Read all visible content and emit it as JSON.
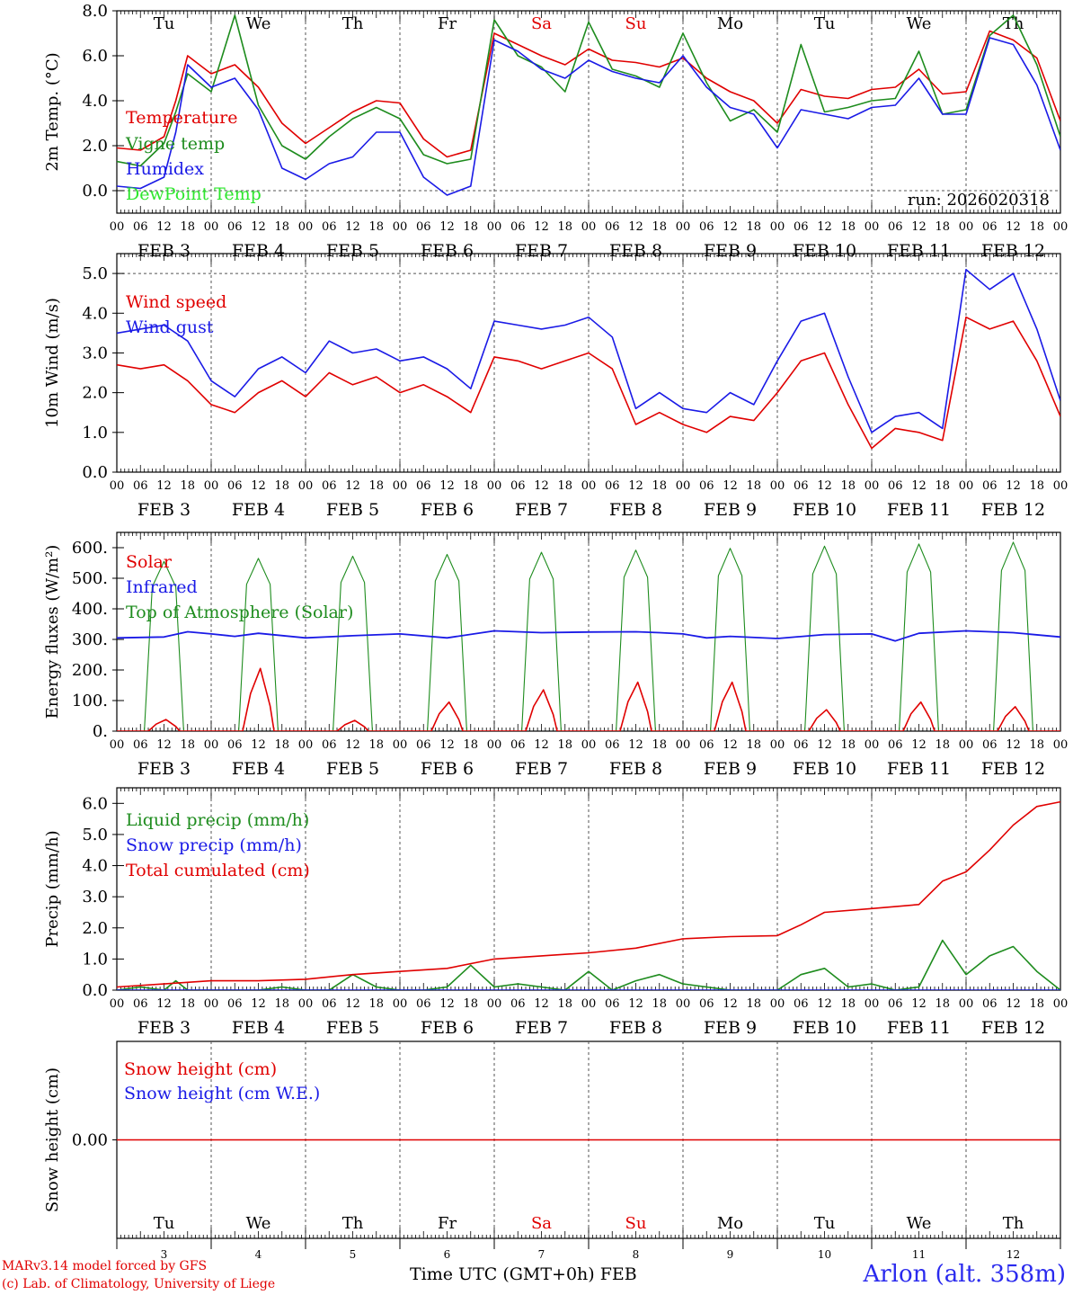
{
  "colors": {
    "red": "#e00000",
    "green": "#1e8c1e",
    "blue": "#1a1ae6",
    "lightgreen": "#2ee62e",
    "axis": "#000000",
    "grid": "#555555"
  },
  "day_names": [
    "Tu",
    "We",
    "Th",
    "Fr",
    "Sa",
    "Su",
    "Mo",
    "Tu",
    "We",
    "Th"
  ],
  "weekend_flags": [
    false,
    false,
    false,
    false,
    true,
    true,
    false,
    false,
    false,
    false
  ],
  "day_numbers": [
    "3",
    "4",
    "5",
    "6",
    "7",
    "8",
    "9",
    "10",
    "11",
    "12"
  ],
  "date_labels": [
    "FEB  3",
    "FEB  4",
    "FEB  5",
    "FEB  6",
    "FEB  7",
    "FEB  8",
    "FEB  9",
    "FEB 10",
    "FEB 11",
    "FEB 12"
  ],
  "hour_labels": [
    "00",
    "06",
    "12",
    "18"
  ],
  "hour_end_label": "00",
  "run_label": "run: 2026020318",
  "footer": {
    "model_line": "MARv3.14 model forced by GFS",
    "lab_line": "(c) Lab. of Climatology, University of Liege",
    "axis_title": "Time UTC (GMT+0h) FEB",
    "station": "Arlon (alt. 358m)"
  },
  "chart_data": [
    {
      "type": "line",
      "id": "temperature",
      "ylabel": "2m Temp. (°C)",
      "ylim": [
        -1.0,
        8.0
      ],
      "yticks": [
        0.0,
        2.0,
        4.0,
        6.0,
        8.0
      ],
      "ytick_labels": [
        "0.0",
        "2.0",
        "4.0",
        "6.0",
        "8.0"
      ],
      "dashed_lines": [
        0.0
      ],
      "x_unit": "hours since FEB 3 00 UTC",
      "xlim": [
        0,
        240
      ],
      "series": [
        {
          "name": "Temperature",
          "color": "red",
          "x": [
            0,
            6,
            12,
            15,
            18,
            24,
            30,
            36,
            42,
            48,
            54,
            60,
            66,
            72,
            78,
            84,
            90,
            96,
            102,
            108,
            114,
            120,
            126,
            132,
            138,
            144,
            150,
            156,
            162,
            168,
            174,
            180,
            186,
            192,
            198,
            204,
            210,
            216,
            222,
            228,
            234,
            240
          ],
          "y": [
            1.9,
            1.8,
            2.4,
            4.0,
            6.0,
            5.2,
            5.6,
            4.6,
            3.0,
            2.1,
            2.8,
            3.5,
            4.0,
            3.9,
            2.3,
            1.5,
            1.8,
            7.0,
            6.5,
            6.0,
            5.6,
            6.3,
            5.8,
            5.7,
            5.5,
            5.9,
            5.0,
            4.4,
            4.0,
            3.0,
            4.5,
            4.2,
            4.1,
            4.5,
            4.6,
            5.4,
            4.3,
            4.4,
            7.1,
            6.7,
            5.9,
            3.1
          ]
        },
        {
          "name": "Vigne temp",
          "color": "green",
          "x": [
            0,
            6,
            12,
            15,
            18,
            24,
            30,
            36,
            42,
            48,
            54,
            60,
            66,
            72,
            78,
            84,
            90,
            96,
            102,
            108,
            114,
            120,
            126,
            132,
            138,
            144,
            150,
            156,
            162,
            168,
            174,
            180,
            186,
            192,
            198,
            204,
            210,
            216,
            222,
            228,
            234,
            240
          ],
          "y": [
            1.3,
            1.1,
            2.1,
            3.5,
            5.2,
            4.4,
            7.8,
            3.8,
            2.0,
            1.4,
            2.4,
            3.2,
            3.7,
            3.2,
            1.6,
            1.2,
            1.4,
            7.6,
            6.0,
            5.5,
            4.4,
            7.5,
            5.4,
            5.1,
            4.6,
            7.0,
            4.8,
            3.1,
            3.6,
            2.6,
            6.5,
            3.5,
            3.7,
            4.0,
            4.1,
            6.2,
            3.4,
            3.6,
            6.9,
            7.8,
            5.6,
            2.4
          ]
        },
        {
          "name": "Humidex",
          "color": "blue",
          "x": [
            0,
            6,
            12,
            15,
            18,
            24,
            30,
            36,
            42,
            48,
            54,
            60,
            66,
            72,
            78,
            84,
            90,
            96,
            102,
            108,
            114,
            120,
            126,
            132,
            138,
            144,
            150,
            156,
            162,
            168,
            174,
            180,
            186,
            192,
            198,
            204,
            210,
            216,
            222,
            228,
            234,
            240
          ],
          "y": [
            0.2,
            0.1,
            0.6,
            2.6,
            5.6,
            4.6,
            5.0,
            3.6,
            1.0,
            0.5,
            1.2,
            1.5,
            2.6,
            2.6,
            0.6,
            -0.2,
            0.2,
            6.7,
            6.2,
            5.4,
            5.0,
            5.8,
            5.3,
            5.0,
            4.8,
            6.0,
            4.6,
            3.7,
            3.4,
            1.9,
            3.6,
            3.4,
            3.2,
            3.7,
            3.8,
            5.0,
            3.4,
            3.4,
            6.8,
            6.5,
            4.7,
            1.8
          ]
        },
        {
          "name": "DewPoint Temp",
          "color": "lightgreen",
          "x": [],
          "y": []
        }
      ]
    },
    {
      "type": "line",
      "id": "wind",
      "ylabel": "10m Wind (m/s)",
      "ylim": [
        0.0,
        5.5
      ],
      "yticks": [
        0.0,
        1.0,
        2.0,
        3.0,
        4.0,
        5.0
      ],
      "ytick_labels": [
        "0.0",
        "1.0",
        "2.0",
        "3.0",
        "4.0",
        "5.0"
      ],
      "dashed_lines": [
        5.0
      ],
      "x_unit": "hours since FEB 3 00 UTC",
      "xlim": [
        0,
        240
      ],
      "series": [
        {
          "name": "Wind speed",
          "color": "red",
          "x": [
            0,
            6,
            12,
            18,
            24,
            30,
            36,
            42,
            48,
            54,
            60,
            66,
            72,
            78,
            84,
            90,
            96,
            102,
            108,
            114,
            120,
            126,
            132,
            138,
            144,
            150,
            156,
            162,
            168,
            174,
            180,
            186,
            192,
            198,
            204,
            210,
            216,
            222,
            228,
            234,
            240
          ],
          "y": [
            2.7,
            2.6,
            2.7,
            2.3,
            1.7,
            1.5,
            2.0,
            2.3,
            1.9,
            2.5,
            2.2,
            2.4,
            2.0,
            2.2,
            1.9,
            1.5,
            2.9,
            2.8,
            2.6,
            2.8,
            3.0,
            2.6,
            1.2,
            1.5,
            1.2,
            1.0,
            1.4,
            1.3,
            2.0,
            2.8,
            3.0,
            1.7,
            0.6,
            1.1,
            1.0,
            0.8,
            3.9,
            3.6,
            3.8,
            2.8,
            1.4
          ]
        },
        {
          "name": "Wind gust",
          "color": "blue",
          "x": [
            0,
            6,
            12,
            18,
            24,
            30,
            36,
            42,
            48,
            54,
            60,
            66,
            72,
            78,
            84,
            90,
            96,
            102,
            108,
            114,
            120,
            126,
            132,
            138,
            144,
            150,
            156,
            162,
            168,
            174,
            180,
            186,
            192,
            198,
            204,
            210,
            216,
            222,
            228,
            234,
            240
          ],
          "y": [
            3.5,
            3.6,
            3.7,
            3.3,
            2.3,
            1.9,
            2.6,
            2.9,
            2.5,
            3.3,
            3.0,
            3.1,
            2.8,
            2.9,
            2.6,
            2.1,
            3.8,
            3.7,
            3.6,
            3.7,
            3.9,
            3.4,
            1.6,
            2.0,
            1.6,
            1.5,
            2.0,
            1.7,
            2.8,
            3.8,
            4.0,
            2.4,
            1.0,
            1.4,
            1.5,
            1.1,
            5.1,
            4.6,
            5.0,
            3.6,
            1.8
          ]
        }
      ]
    },
    {
      "type": "line",
      "id": "energy",
      "ylabel": "Energy fluxes (W/m²)",
      "ylim": [
        0,
        650
      ],
      "yticks": [
        0,
        100,
        200,
        300,
        400,
        500,
        600
      ],
      "ytick_labels": [
        "0.",
        "100.",
        "200.",
        "300.",
        "400.",
        "500.",
        "600."
      ],
      "dashed_lines": [],
      "x_unit": "hours since FEB 3 00 UTC",
      "xlim": [
        0,
        240
      ],
      "daily_peaks": {
        "solar": [
          38,
          205,
          35,
          95,
          135,
          160,
          160,
          70,
          95,
          80
        ],
        "toa_solar": [
          555,
          565,
          572,
          578,
          585,
          592,
          598,
          605,
          612,
          618
        ]
      },
      "series": [
        {
          "name": "Solar",
          "color": "red"
        },
        {
          "name": "Infrared",
          "color": "blue",
          "x": [
            0,
            12,
            18,
            24,
            30,
            36,
            48,
            60,
            72,
            84,
            96,
            102,
            108,
            120,
            132,
            138,
            144,
            150,
            156,
            168,
            180,
            192,
            198,
            204,
            216,
            228,
            240
          ],
          "y": [
            305,
            308,
            325,
            318,
            310,
            320,
            305,
            312,
            318,
            305,
            328,
            325,
            322,
            324,
            325,
            322,
            318,
            305,
            310,
            303,
            316,
            318,
            295,
            320,
            328,
            322,
            308
          ]
        },
        {
          "name": "Top of Atmosphere (Solar)",
          "color": "green"
        }
      ]
    },
    {
      "type": "line",
      "id": "precip",
      "ylabel": "Precip (mm/h)",
      "ylim": [
        0.0,
        6.5
      ],
      "yticks": [
        0.0,
        1.0,
        2.0,
        3.0,
        4.0,
        5.0,
        6.0
      ],
      "ytick_labels": [
        "0.0",
        "1.0",
        "2.0",
        "3.0",
        "4.0",
        "5.0",
        "6.0"
      ],
      "dashed_lines": [],
      "x_unit": "hours since FEB 3 00 UTC",
      "xlim": [
        0,
        240
      ],
      "series": [
        {
          "name": "Liquid precip (mm/h)",
          "color": "green",
          "x": [
            0,
            6,
            12,
            15,
            18,
            24,
            30,
            36,
            42,
            48,
            54,
            60,
            66,
            72,
            78,
            84,
            90,
            96,
            102,
            108,
            114,
            120,
            126,
            132,
            138,
            144,
            150,
            156,
            162,
            168,
            174,
            180,
            186,
            192,
            198,
            204,
            210,
            216,
            222,
            228,
            234,
            240
          ],
          "y": [
            0.0,
            0.1,
            0.0,
            0.3,
            0.0,
            0.0,
            0.0,
            0.0,
            0.1,
            0.0,
            0.0,
            0.5,
            0.1,
            0.0,
            0.0,
            0.1,
            0.8,
            0.1,
            0.2,
            0.1,
            0.0,
            0.6,
            0.0,
            0.3,
            0.5,
            0.2,
            0.1,
            0.0,
            0.0,
            0.0,
            0.5,
            0.7,
            0.1,
            0.2,
            0.0,
            0.1,
            1.6,
            0.5,
            1.1,
            1.4,
            0.6,
            0.0
          ]
        },
        {
          "name": "Snow precip (mm/h)",
          "color": "blue",
          "x": [
            0,
            240
          ],
          "y": [
            0.0,
            0.0
          ]
        },
        {
          "name": "Total cumulated (cm)",
          "color": "red",
          "x": [
            0,
            12,
            24,
            36,
            48,
            60,
            72,
            84,
            96,
            108,
            120,
            132,
            144,
            156,
            168,
            174,
            180,
            192,
            204,
            210,
            216,
            222,
            228,
            234,
            240
          ],
          "y": [
            0.1,
            0.2,
            0.3,
            0.3,
            0.35,
            0.5,
            0.6,
            0.7,
            1.0,
            1.1,
            1.2,
            1.35,
            1.65,
            1.72,
            1.75,
            2.1,
            2.5,
            2.62,
            2.75,
            3.5,
            3.8,
            4.5,
            5.3,
            5.9,
            6.05
          ]
        }
      ]
    },
    {
      "type": "line",
      "id": "snow",
      "ylabel": "Snow height (cm)",
      "ylim": [
        -1.0,
        1.0
      ],
      "yticks": [
        0.0
      ],
      "ytick_labels": [
        "0.00"
      ],
      "dashed_lines": [],
      "x_unit": "hours since FEB 3 00 UTC",
      "xlim": [
        0,
        240
      ],
      "series": [
        {
          "name": "Snow height (cm)",
          "color": "red",
          "x": [
            0,
            240
          ],
          "y": [
            0.0,
            0.0
          ]
        },
        {
          "name": "Snow height (cm W.E.)",
          "color": "blue",
          "x": [],
          "y": []
        }
      ]
    }
  ]
}
